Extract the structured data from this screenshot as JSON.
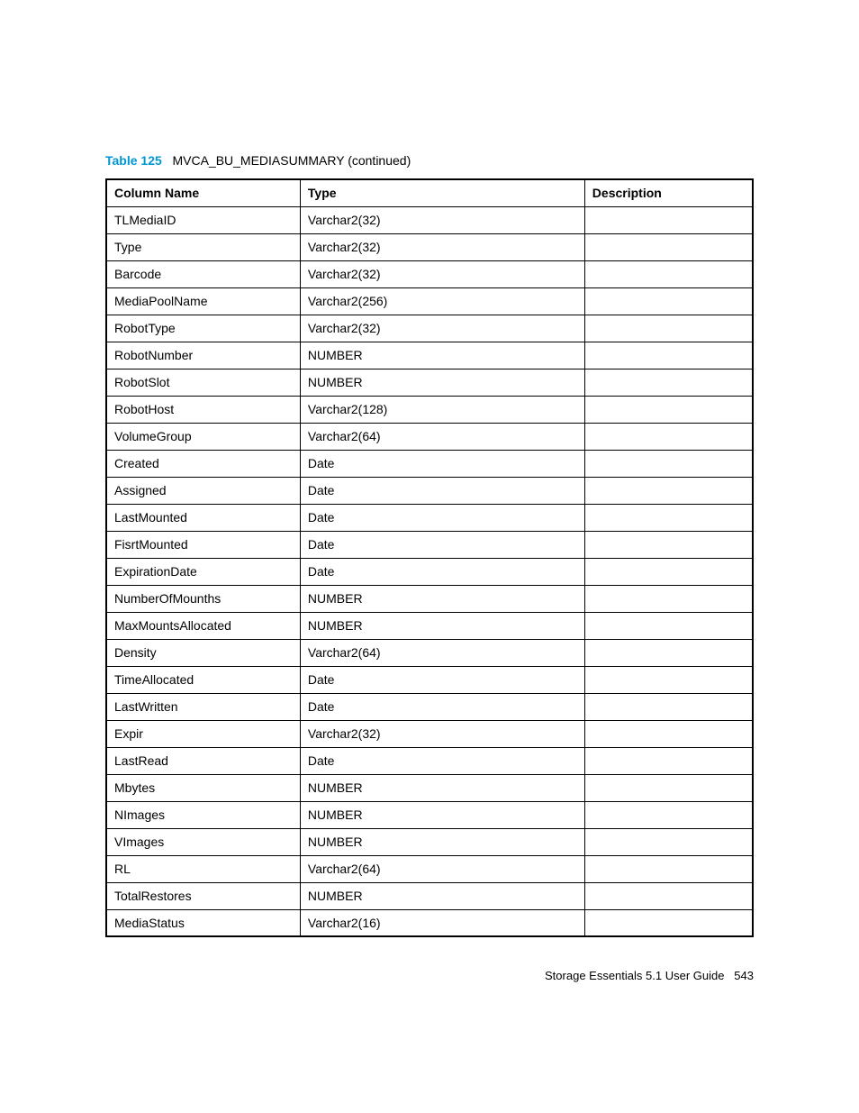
{
  "caption": {
    "label": "Table 125",
    "title": "MVCA_BU_MEDIASUMMARY (continued)"
  },
  "headers": {
    "col1": "Column Name",
    "col2": "Type",
    "col3": "Description"
  },
  "rows": [
    {
      "name": "TLMediaID",
      "type": "Varchar2(32)",
      "desc": ""
    },
    {
      "name": "Type",
      "type": "Varchar2(32)",
      "desc": ""
    },
    {
      "name": "Barcode",
      "type": "Varchar2(32)",
      "desc": ""
    },
    {
      "name": "MediaPoolName",
      "type": "Varchar2(256)",
      "desc": ""
    },
    {
      "name": "RobotType",
      "type": "Varchar2(32)",
      "desc": ""
    },
    {
      "name": "RobotNumber",
      "type": "NUMBER",
      "desc": ""
    },
    {
      "name": "RobotSlot",
      "type": "NUMBER",
      "desc": ""
    },
    {
      "name": "RobotHost",
      "type": "Varchar2(128)",
      "desc": ""
    },
    {
      "name": "VolumeGroup",
      "type": "Varchar2(64)",
      "desc": ""
    },
    {
      "name": "Created",
      "type": "Date",
      "desc": ""
    },
    {
      "name": "Assigned",
      "type": "Date",
      "desc": ""
    },
    {
      "name": "LastMounted",
      "type": "Date",
      "desc": ""
    },
    {
      "name": "FisrtMounted",
      "type": "Date",
      "desc": ""
    },
    {
      "name": "ExpirationDate",
      "type": "Date",
      "desc": ""
    },
    {
      "name": "NumberOfMounths",
      "type": "NUMBER",
      "desc": ""
    },
    {
      "name": "MaxMountsAllocated",
      "type": "NUMBER",
      "desc": ""
    },
    {
      "name": "Density",
      "type": "Varchar2(64)",
      "desc": ""
    },
    {
      "name": "TimeAllocated",
      "type": "Date",
      "desc": ""
    },
    {
      "name": "LastWritten",
      "type": "Date",
      "desc": ""
    },
    {
      "name": "Expir",
      "type": "Varchar2(32)",
      "desc": ""
    },
    {
      "name": "LastRead",
      "type": "Date",
      "desc": ""
    },
    {
      "name": "Mbytes",
      "type": "NUMBER",
      "desc": ""
    },
    {
      "name": "NImages",
      "type": "NUMBER",
      "desc": ""
    },
    {
      "name": "VImages",
      "type": "NUMBER",
      "desc": ""
    },
    {
      "name": "RL",
      "type": "Varchar2(64)",
      "desc": ""
    },
    {
      "name": "TotalRestores",
      "type": "NUMBER",
      "desc": ""
    },
    {
      "name": "MediaStatus",
      "type": "Varchar2(16)",
      "desc": ""
    }
  ],
  "footer": {
    "text": "Storage Essentials 5.1 User Guide",
    "page": "543"
  },
  "colors": {
    "accent": "#0096d6",
    "text": "#000000",
    "background": "#ffffff",
    "border": "#000000"
  }
}
